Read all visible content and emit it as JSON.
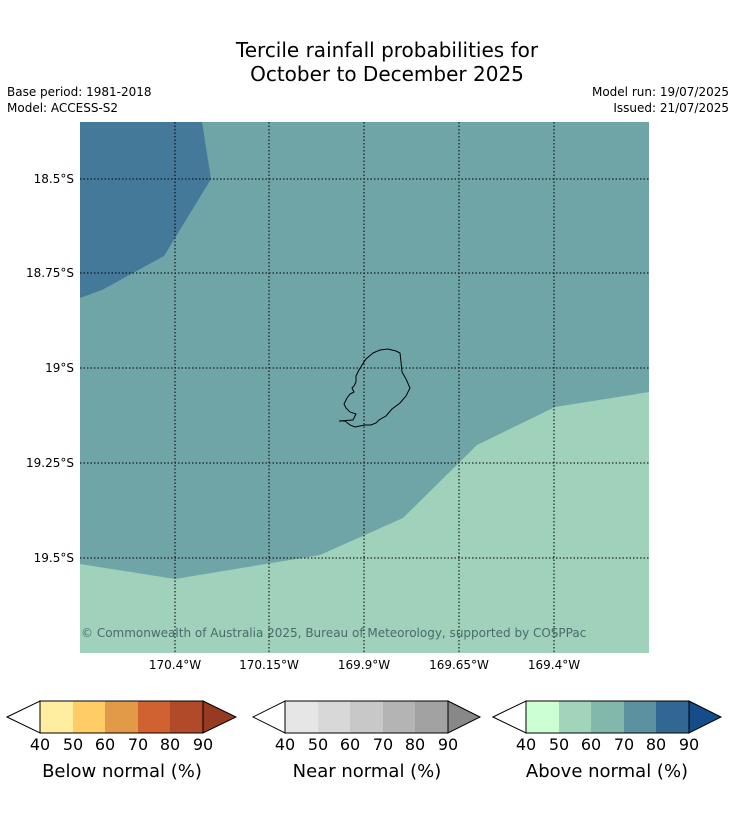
{
  "title_line1": "Tercile rainfall probabilities for",
  "title_line2": "October to December 2025",
  "base_period": "Base period: 1981-2018",
  "model": "Model: ACCESS-S2",
  "model_run": "Model run: 19/07/2025",
  "issued": "Issued: 21/07/2025",
  "lat_labels": [
    "18.5°S",
    "18.75°S",
    "19°S",
    "19.25°S",
    "19.5°S"
  ],
  "lon_labels": [
    "170.4°W",
    "170.15°W",
    "169.9°W",
    "169.65°W",
    "169.4°W"
  ],
  "copyright": "© Commonwealth of Australia 2025, Bureau of Meteorology, supported by COSPPac",
  "colors": {
    "above_60_70": "#6fa5a7",
    "above_80_90": "#44799a",
    "above_50_60": "#9fd1bb"
  },
  "colorbars": [
    {
      "label": "Below normal (%)",
      "ticks": [
        "40",
        "50",
        "60",
        "70",
        "80",
        "90"
      ],
      "colors": [
        "#ffeea0",
        "#ffcc66",
        "#e39a48",
        "#cf6230",
        "#b14a28"
      ],
      "over_color": "#963a22"
    },
    {
      "label": "Near normal (%)",
      "ticks": [
        "40",
        "50",
        "60",
        "70",
        "80",
        "90"
      ],
      "colors": [
        "#e6e6e6",
        "#d8d8d8",
        "#c8c8c8",
        "#b4b4b4",
        "#a2a2a2"
      ],
      "over_color": "#888888"
    },
    {
      "label": "Above normal (%)",
      "ticks": [
        "40",
        "50",
        "60",
        "70",
        "80",
        "90"
      ],
      "colors": [
        "#ccffd2",
        "#a2d4bc",
        "#82b7ab",
        "#5c91a0",
        "#326693"
      ],
      "over_color": "#154d8a"
    }
  ]
}
